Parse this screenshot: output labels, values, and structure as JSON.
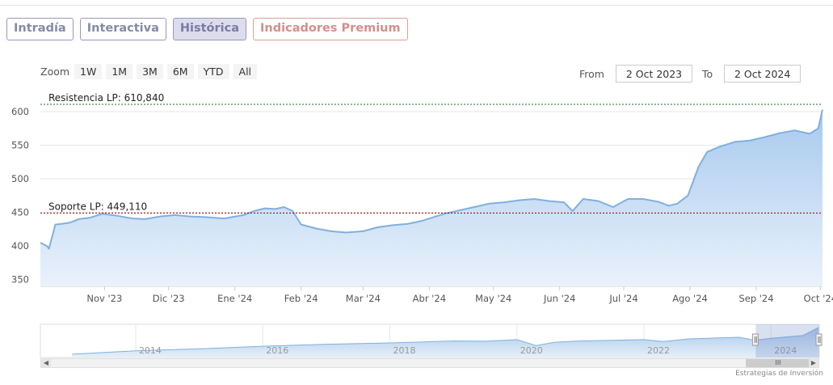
{
  "tabs": [
    {
      "label": "Intradía"
    },
    {
      "label": "Interactiva"
    },
    {
      "label": "Histórica"
    },
    {
      "label": "Indicadores Premium"
    }
  ],
  "zoom": {
    "label": "Zoom",
    "buttons": [
      "1W",
      "1M",
      "3M",
      "6M",
      "YTD",
      "All"
    ]
  },
  "range": {
    "from_label": "From",
    "from_value": "2 Oct 2023",
    "to_label": "To",
    "to_value": "2 Oct 2024"
  },
  "credit": "Estrategias de Inversión",
  "navigator_scroll_grip": "III",
  "colors": {
    "line": "#7fb0df",
    "area_top": "#a7c9ee",
    "resistance": "#1f6a2e",
    "support": "#8b0000"
  },
  "chart_data": {
    "type": "area",
    "xlim": [
      "2023-10-02",
      "2024-10-02"
    ],
    "ylim": [
      340,
      612
    ],
    "y_ticks": [
      350,
      400,
      450,
      500,
      550,
      600
    ],
    "x_tick_labels": [
      {
        "date": "2023-11-01",
        "label": "Nov '23"
      },
      {
        "date": "2023-12-01",
        "label": "Dic '23"
      },
      {
        "date": "2024-01-01",
        "label": "Ene '24"
      },
      {
        "date": "2024-02-01",
        "label": "Feb '24"
      },
      {
        "date": "2024-03-01",
        "label": "Mar '24"
      },
      {
        "date": "2024-04-01",
        "label": "Abr '24"
      },
      {
        "date": "2024-05-01",
        "label": "May '24"
      },
      {
        "date": "2024-06-01",
        "label": "Jun '24"
      },
      {
        "date": "2024-07-01",
        "label": "Jul '24"
      },
      {
        "date": "2024-08-01",
        "label": "Ago '24"
      },
      {
        "date": "2024-09-01",
        "label": "Sep '24"
      },
      {
        "date": "2024-10-01",
        "label": "Oct '24"
      }
    ],
    "annotations": [
      {
        "label": "Resistencia LP: 610,840",
        "value": 610.84,
        "style": "resistance"
      },
      {
        "label": "Soporte LP: 449,110",
        "value": 449.11,
        "style": "support"
      }
    ],
    "series": [
      {
        "x": [
          "2023-10-02",
          "2023-10-05",
          "2023-10-06",
          "2023-10-09",
          "2023-10-12",
          "2023-10-16",
          "2023-10-20",
          "2023-10-25",
          "2023-10-31",
          "2023-11-07",
          "2023-11-14",
          "2023-11-20",
          "2023-11-27",
          "2023-12-04",
          "2023-12-11",
          "2023-12-18",
          "2023-12-27",
          "2024-01-05",
          "2024-01-10",
          "2024-01-15",
          "2024-01-20",
          "2024-01-24",
          "2024-01-28",
          "2024-02-01",
          "2024-02-08",
          "2024-02-15",
          "2024-02-22",
          "2024-03-01",
          "2024-03-08",
          "2024-03-15",
          "2024-03-22",
          "2024-03-28",
          "2024-04-02",
          "2024-04-08",
          "2024-04-15",
          "2024-04-22",
          "2024-04-29",
          "2024-05-06",
          "2024-05-13",
          "2024-05-20",
          "2024-05-27",
          "2024-06-03",
          "2024-06-07",
          "2024-06-12",
          "2024-06-19",
          "2024-06-26",
          "2024-07-03",
          "2024-07-10",
          "2024-07-17",
          "2024-07-22",
          "2024-07-26",
          "2024-07-31",
          "2024-08-05",
          "2024-08-09",
          "2024-08-15",
          "2024-08-22",
          "2024-08-29",
          "2024-09-05",
          "2024-09-12",
          "2024-09-19",
          "2024-09-26",
          "2024-09-30",
          "2024-10-02"
        ],
        "values": [
          405,
          400,
          396,
          432,
          433,
          435,
          440,
          442,
          448,
          445,
          441,
          440,
          444,
          446,
          444,
          443,
          441,
          446,
          452,
          456,
          455,
          458,
          452,
          432,
          426,
          422,
          420,
          422,
          428,
          431,
          433,
          437,
          442,
          448,
          453,
          458,
          463,
          465,
          468,
          470,
          467,
          465,
          452,
          470,
          467,
          458,
          470,
          470,
          466,
          460,
          463,
          475,
          518,
          540,
          548,
          555,
          557,
          562,
          568,
          572,
          567,
          575,
          603
        ]
      }
    ]
  },
  "navigator": {
    "year_labels": [
      "2014",
      "2016",
      "2018",
      "2020",
      "2022",
      "2024"
    ],
    "series": {
      "x": [
        2013.0,
        2014.0,
        2015.0,
        2016.0,
        2017.0,
        2018.0,
        2019.0,
        2019.5,
        2020.0,
        2020.3,
        2020.6,
        2021.0,
        2021.5,
        2022.0,
        2022.3,
        2022.7,
        2023.0,
        2023.5,
        2023.75,
        2024.0,
        2024.5,
        2024.75
      ],
      "values": [
        200,
        250,
        280,
        320,
        350,
        370,
        400,
        395,
        420,
        330,
        380,
        400,
        410,
        420,
        390,
        430,
        440,
        455,
        410,
        440,
        480,
        603
      ]
    },
    "xlim": [
      2012.5,
      2024.76
    ],
    "ylim": [
      150,
      650
    ]
  }
}
